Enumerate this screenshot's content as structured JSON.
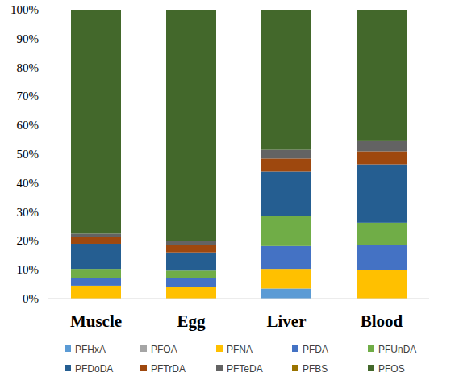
{
  "chart_data": {
    "type": "bar",
    "stacked": true,
    "grid": false,
    "legend": "bottom",
    "categories": [
      "Muscle",
      "Egg",
      "Liver",
      "Blood"
    ],
    "ylim": [
      0,
      100
    ],
    "yticks": [
      {
        "value": 0,
        "label": "0%"
      },
      {
        "value": 10,
        "label": "10%"
      },
      {
        "value": 20,
        "label": "20%"
      },
      {
        "value": 30,
        "label": "30%"
      },
      {
        "value": 40,
        "label": "40%"
      },
      {
        "value": 50,
        "label": "50%"
      },
      {
        "value": 60,
        "label": "60%"
      },
      {
        "value": 70,
        "label": "70%"
      },
      {
        "value": 80,
        "label": "80%"
      },
      {
        "value": 90,
        "label": "90%"
      },
      {
        "value": 100,
        "label": "100%"
      }
    ],
    "series": [
      {
        "name": "PFHxA",
        "color": "#5b9bd5",
        "values": [
          0,
          0,
          3.5,
          0
        ]
      },
      {
        "name": "PFOA",
        "color": "#a5a5a5",
        "values": [
          0,
          0,
          0,
          0
        ]
      },
      {
        "name": "PFNA",
        "color": "#ffc000",
        "values": [
          4.5,
          4,
          6.8,
          10
        ]
      },
      {
        "name": "PFDA",
        "color": "#4472c4",
        "values": [
          2.7,
          3,
          7.9,
          8.5
        ]
      },
      {
        "name": "PFUnDA",
        "color": "#70ad47",
        "values": [
          3.1,
          2.7,
          10.5,
          7.8
        ]
      },
      {
        "name": "PFDoDA",
        "color": "#255e91",
        "values": [
          8.7,
          6.3,
          15.3,
          20.2
        ]
      },
      {
        "name": "PFTrDA",
        "color": "#9e480e",
        "values": [
          2.3,
          2.5,
          4.5,
          4.5
        ]
      },
      {
        "name": "PFTeDA",
        "color": "#636363",
        "values": [
          1.2,
          1.5,
          3,
          3.5
        ]
      },
      {
        "name": "PFBS",
        "color": "#997300",
        "values": [
          0,
          0,
          0,
          0
        ]
      },
      {
        "name": "PFOS",
        "color": "#43682b",
        "values": [
          77.5,
          80,
          48.5,
          45.5
        ]
      }
    ]
  }
}
